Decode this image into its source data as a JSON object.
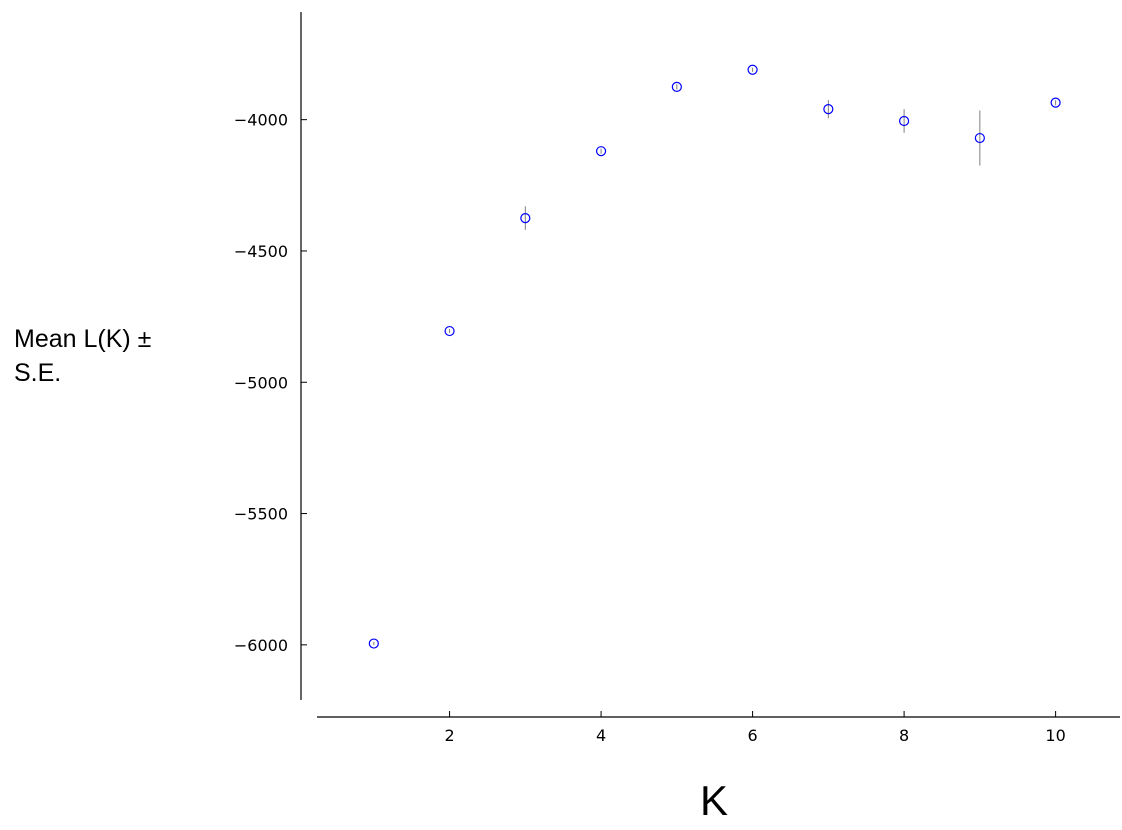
{
  "chart_data": {
    "type": "scatter",
    "xlabel": "K",
    "ylabel_line1": "Mean L(K) ±",
    "ylabel_line2": "S.E.",
    "xlim": [
      0.25,
      10.85
    ],
    "ylim": [
      -6210,
      -3590
    ],
    "xticks": [
      2,
      4,
      6,
      8,
      10
    ],
    "yticks": [
      -6000,
      -5500,
      -5000,
      -4500,
      -4000
    ],
    "grid": false,
    "marker_color": "#0000ff",
    "errorbar_color": "#808080",
    "series": [
      {
        "x": [
          1,
          2,
          3,
          4,
          5,
          6,
          7,
          8,
          9,
          10
        ],
        "y": [
          -5995,
          -4805,
          -4375,
          -4120,
          -3875,
          -3810,
          -3960,
          -4005,
          -4070,
          -3935
        ],
        "err": [
          6,
          8,
          45,
          10,
          10,
          8,
          35,
          45,
          105,
          10
        ]
      }
    ]
  }
}
